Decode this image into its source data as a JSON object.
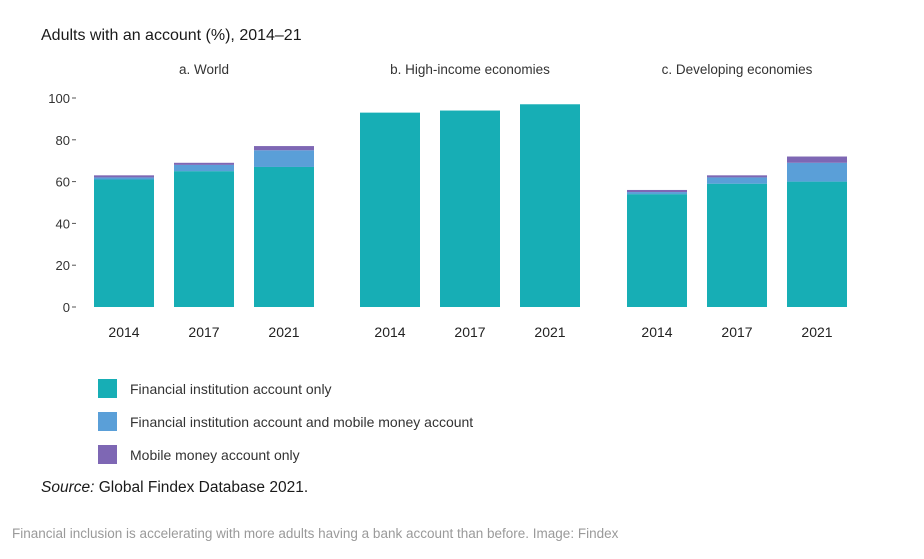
{
  "figure_title": "Adults with an account (%), 2014–21",
  "source_label": "Source:",
  "source_text": "Global Findex Database 2021.",
  "caption": "Financial inclusion is accelerating with more adults having a bank account than before. Image: Findex",
  "colors": {
    "fi_only": "#17AEB5",
    "fi_and_mobile": "#5A9FD8",
    "mobile_only": "#7E67B4",
    "axis": "#555555"
  },
  "legend": [
    {
      "label": "Financial institution account only",
      "color_key": "fi_only"
    },
    {
      "label": "Financial institution account and mobile money account",
      "color_key": "fi_and_mobile"
    },
    {
      "label": "Mobile money account only",
      "color_key": "mobile_only"
    }
  ],
  "chart_data": {
    "type": "bar",
    "stacked": true,
    "ylim": [
      0,
      100
    ],
    "yticks": [
      0,
      20,
      40,
      60,
      80,
      100
    ],
    "series_names": [
      "Financial institution account only",
      "Financial institution account and mobile money account",
      "Mobile money account only"
    ],
    "panels": [
      {
        "title": "a. World",
        "categories": [
          "2014",
          "2017",
          "2021"
        ],
        "series": [
          {
            "name": "Financial institution account only",
            "values": [
              61,
              65,
              67
            ]
          },
          {
            "name": "Financial institution account and mobile money account",
            "values": [
              1,
              3,
              8
            ]
          },
          {
            "name": "Mobile money account only",
            "values": [
              1,
              1,
              2
            ]
          }
        ]
      },
      {
        "title": "b. High-income economies",
        "categories": [
          "2014",
          "2017",
          "2021"
        ],
        "series": [
          {
            "name": "Financial institution account only",
            "values": [
              93,
              94,
              97
            ]
          },
          {
            "name": "Financial institution account and mobile money account",
            "values": [
              0,
              0,
              0
            ]
          },
          {
            "name": "Mobile money account only",
            "values": [
              0,
              0,
              0
            ]
          }
        ]
      },
      {
        "title": "c. Developing economies",
        "categories": [
          "2014",
          "2017",
          "2021"
        ],
        "series": [
          {
            "name": "Financial institution account only",
            "values": [
              54,
              59,
              60
            ]
          },
          {
            "name": "Financial institution account and mobile money account",
            "values": [
              1,
              3,
              9
            ]
          },
          {
            "name": "Mobile money account only",
            "values": [
              1,
              1,
              3
            ]
          }
        ]
      }
    ]
  }
}
